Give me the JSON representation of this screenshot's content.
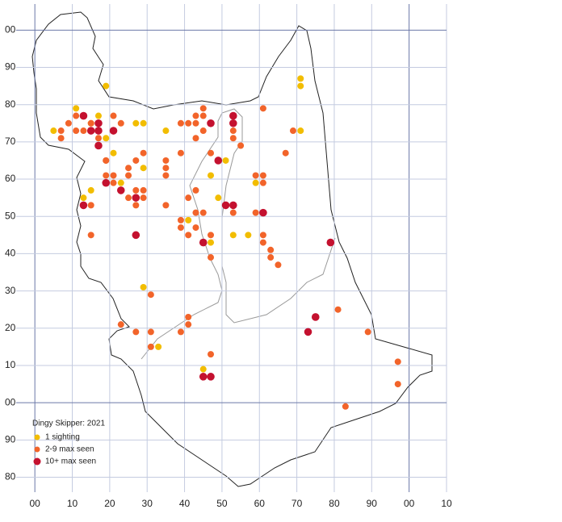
{
  "chart_data": {
    "type": "scatter",
    "title": "Dingy Skipper:  2021",
    "xlim": [
      -5,
      110
    ],
    "ylim": [
      -24,
      107
    ],
    "xticks": [
      {
        "value": 0,
        "label": "00"
      },
      10,
      20,
      30,
      40,
      50,
      60,
      70,
      80,
      90,
      {
        "value": 100,
        "label": "00"
      },
      {
        "value": 110,
        "label": "10"
      }
    ],
    "yticks": [
      {
        "value": -20,
        "label": "80"
      },
      {
        "value": -10,
        "label": "90"
      },
      {
        "value": 0,
        "label": "00"
      },
      10,
      20,
      30,
      40,
      50,
      60,
      70,
      80,
      90,
      {
        "value": 100,
        "label": "00"
      }
    ],
    "grid": true,
    "legend": "lower left",
    "series": [
      {
        "name": "1 sighting",
        "color": "#f2bd00",
        "x": [
          5,
          11,
          19,
          17,
          15,
          19,
          21,
          13,
          15,
          23,
          27,
          29,
          29,
          29,
          35,
          33,
          41,
          47,
          49,
          47,
          51,
          53,
          57,
          59,
          71,
          71,
          71,
          45
        ],
        "values": [
          73,
          79,
          85,
          77,
          75,
          71,
          67,
          55,
          57,
          59,
          75,
          75,
          63,
          31,
          73,
          15,
          49,
          61,
          55,
          43,
          65,
          45,
          45,
          59,
          87,
          85,
          73,
          9
        ]
      },
      {
        "name": "2-9 max seen",
        "color": "#f2642a",
        "x": [
          7,
          7,
          9,
          11,
          11,
          13,
          17,
          17,
          19,
          19,
          21,
          21,
          23,
          15,
          19,
          21,
          25,
          25,
          27,
          29,
          21,
          15,
          15,
          25,
          27,
          29,
          29,
          27,
          35,
          35,
          35,
          35,
          31,
          23,
          27,
          31,
          31,
          39,
          41,
          41,
          39,
          41,
          43,
          43,
          45,
          45,
          45,
          43,
          39,
          41,
          43,
          43,
          45,
          39,
          39,
          41,
          43,
          47,
          47,
          47,
          53,
          53,
          55,
          53,
          59,
          61,
          59,
          61,
          61,
          61,
          63,
          63,
          65,
          61,
          69,
          67,
          47,
          81,
          89,
          97,
          97,
          83
        ],
        "values": [
          73,
          71,
          75,
          77,
          73,
          73,
          73,
          71,
          65,
          65,
          73,
          77,
          75,
          75,
          61,
          61,
          61,
          63,
          65,
          67,
          59,
          53,
          45,
          55,
          57,
          57,
          55,
          53,
          65,
          63,
          61,
          53,
          29,
          21,
          19,
          19,
          15,
          19,
          23,
          21,
          75,
          75,
          77,
          75,
          79,
          77,
          73,
          71,
          67,
          55,
          57,
          51,
          51,
          49,
          47,
          45,
          47,
          45,
          39,
          67,
          73,
          71,
          69,
          51,
          61,
          61,
          51,
          59,
          45,
          43,
          41,
          39,
          37,
          79,
          73,
          67,
          13,
          25,
          19,
          11,
          5,
          -1
        ]
      },
      {
        "name": "10+ max seen",
        "color": "#c4112f",
        "x": [
          13,
          15,
          17,
          17,
          17,
          21,
          19,
          13,
          23,
          27,
          27,
          47,
          53,
          53,
          49,
          45,
          51,
          53,
          61,
          79,
          75,
          73,
          45,
          47
        ],
        "values": [
          77,
          73,
          75,
          73,
          69,
          73,
          59,
          53,
          57,
          55,
          45,
          75,
          77,
          75,
          65,
          43,
          53,
          53,
          51,
          43,
          23,
          19,
          7,
          7
        ]
      }
    ]
  }
}
